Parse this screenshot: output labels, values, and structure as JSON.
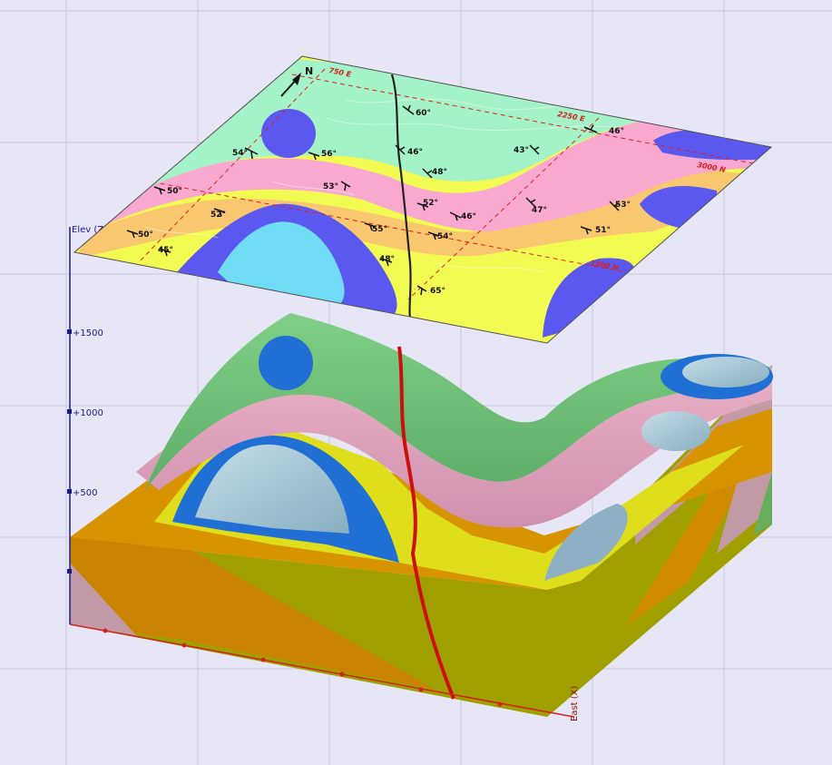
{
  "axes": {
    "elev_label": "Elev (Z)",
    "elev_ticks": [
      "+1500",
      "+1000",
      "+500"
    ],
    "east_label": "East (X)"
  },
  "map": {
    "north_label": "N",
    "grid_labels": [
      "750 E",
      "2250 E",
      "3000 N",
      "1500 N"
    ],
    "dip_labels": [
      "60°",
      "46°",
      "46°",
      "43°",
      "54°",
      "56°",
      "48°",
      "53°",
      "50°",
      "52°",
      "52°",
      "46°",
      "47°",
      "53°",
      "50°",
      "55°",
      "54°",
      "51°",
      "45°",
      "48°",
      "65°"
    ]
  },
  "colors": {
    "background": "#e6e6f6",
    "grid_line": "#c8c8e0",
    "green_unit": "#a4f2c8",
    "pink_unit": "#f9a8d0",
    "orange_unit": "#f8c770",
    "yellow_unit": "#f2fb52",
    "blue_unit": "#5a58ee",
    "cyan_unit": "#70dcf6",
    "fault": "#cc1010",
    "axis": "#1a1a8c"
  }
}
